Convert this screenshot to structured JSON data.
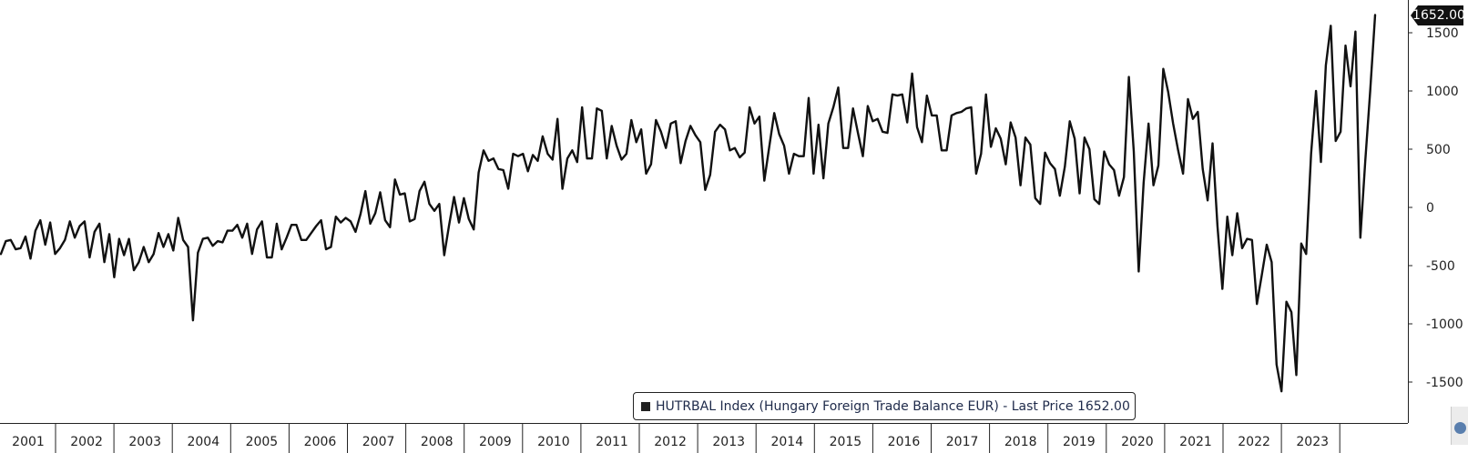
{
  "chart_data": {
    "type": "line",
    "legend": {
      "ticker": "HUTRBAL Index",
      "text": "HUTRBAL Index (Hungary Foreign Trade Balance EUR) - Last Price 1652.00"
    },
    "last_price_label": "1652.00",
    "last_price": 1652,
    "ylim": [
      -1750,
      1750
    ],
    "yticks": [
      1500,
      1000,
      500,
      0,
      -500,
      -1000,
      -1500
    ],
    "ytick_labels": [
      "1500",
      "1000",
      "500",
      "0",
      "-500",
      "-1000",
      "-1500"
    ],
    "year_labels": [
      "2001",
      "2002",
      "2003",
      "2004",
      "2005",
      "2006",
      "2007",
      "2008",
      "2009",
      "2010",
      "2011",
      "2012",
      "2013",
      "2014",
      "2015",
      "2016",
      "2017",
      "2018",
      "2019",
      "2020",
      "2021",
      "2022",
      "2023"
    ],
    "x_start_year": 2001,
    "series": [
      {
        "color": "#111111",
        "values": [
          -400,
          -290,
          -280,
          -360,
          -350,
          -250,
          -440,
          -200,
          -110,
          -320,
          -130,
          -400,
          -350,
          -280,
          -120,
          -260,
          -160,
          -120,
          -430,
          -210,
          -140,
          -470,
          -230,
          -600,
          -270,
          -410,
          -270,
          -540,
          -470,
          -340,
          -470,
          -400,
          -220,
          -340,
          -230,
          -370,
          -90,
          -280,
          -340,
          -970,
          -390,
          -270,
          -260,
          -330,
          -290,
          -300,
          -200,
          -200,
          -150,
          -260,
          -140,
          -400,
          -190,
          -120,
          -430,
          -430,
          -140,
          -360,
          -260,
          -150,
          -150,
          -280,
          -280,
          -220,
          -160,
          -110,
          -360,
          -340,
          -80,
          -130,
          -90,
          -120,
          -210,
          -60,
          140,
          -140,
          -50,
          130,
          -110,
          -170,
          240,
          110,
          120,
          -120,
          -100,
          140,
          220,
          30,
          -30,
          30,
          -410,
          -150,
          90,
          -130,
          80,
          -100,
          -190,
          300,
          490,
          400,
          420,
          330,
          320,
          160,
          460,
          440,
          460,
          310,
          450,
          400,
          610,
          460,
          410,
          760,
          160,
          420,
          490,
          390,
          860,
          420,
          420,
          850,
          830,
          420,
          700,
          530,
          410,
          460,
          750,
          560,
          670,
          290,
          370,
          750,
          650,
          510,
          720,
          740,
          380,
          570,
          700,
          620,
          560,
          150,
          280,
          650,
          710,
          670,
          490,
          510,
          430,
          470,
          860,
          720,
          780,
          230,
          520,
          810,
          630,
          530,
          290,
          460,
          440,
          440,
          940,
          290,
          710,
          250,
          720,
          860,
          1030,
          510,
          510,
          850,
          640,
          440,
          870,
          740,
          760,
          650,
          640,
          970,
          960,
          970,
          730,
          1150,
          690,
          560,
          960,
          790,
          790,
          490,
          490,
          790,
          810,
          820,
          850,
          860,
          290,
          460,
          970,
          520,
          680,
          590,
          370,
          730,
          600,
          190,
          600,
          540,
          80,
          30,
          470,
          380,
          330,
          100,
          350,
          740,
          590,
          120,
          600,
          500,
          70,
          30,
          480,
          370,
          320,
          100,
          260,
          1120,
          480,
          -550,
          210,
          720,
          190,
          360,
          1190,
          990,
          720,
          490,
          290,
          930,
          760,
          820,
          330,
          60,
          550,
          -160,
          -700,
          -80,
          -410,
          -50,
          -350,
          -270,
          -280,
          -830,
          -580,
          -320,
          -470,
          -1350,
          -1580,
          -810,
          -900,
          -1440,
          -310,
          -400,
          460,
          1000,
          390,
          1220,
          1560,
          570,
          650,
          1390,
          1040,
          1510,
          -260,
          400,
          1000,
          1652
        ]
      }
    ]
  }
}
